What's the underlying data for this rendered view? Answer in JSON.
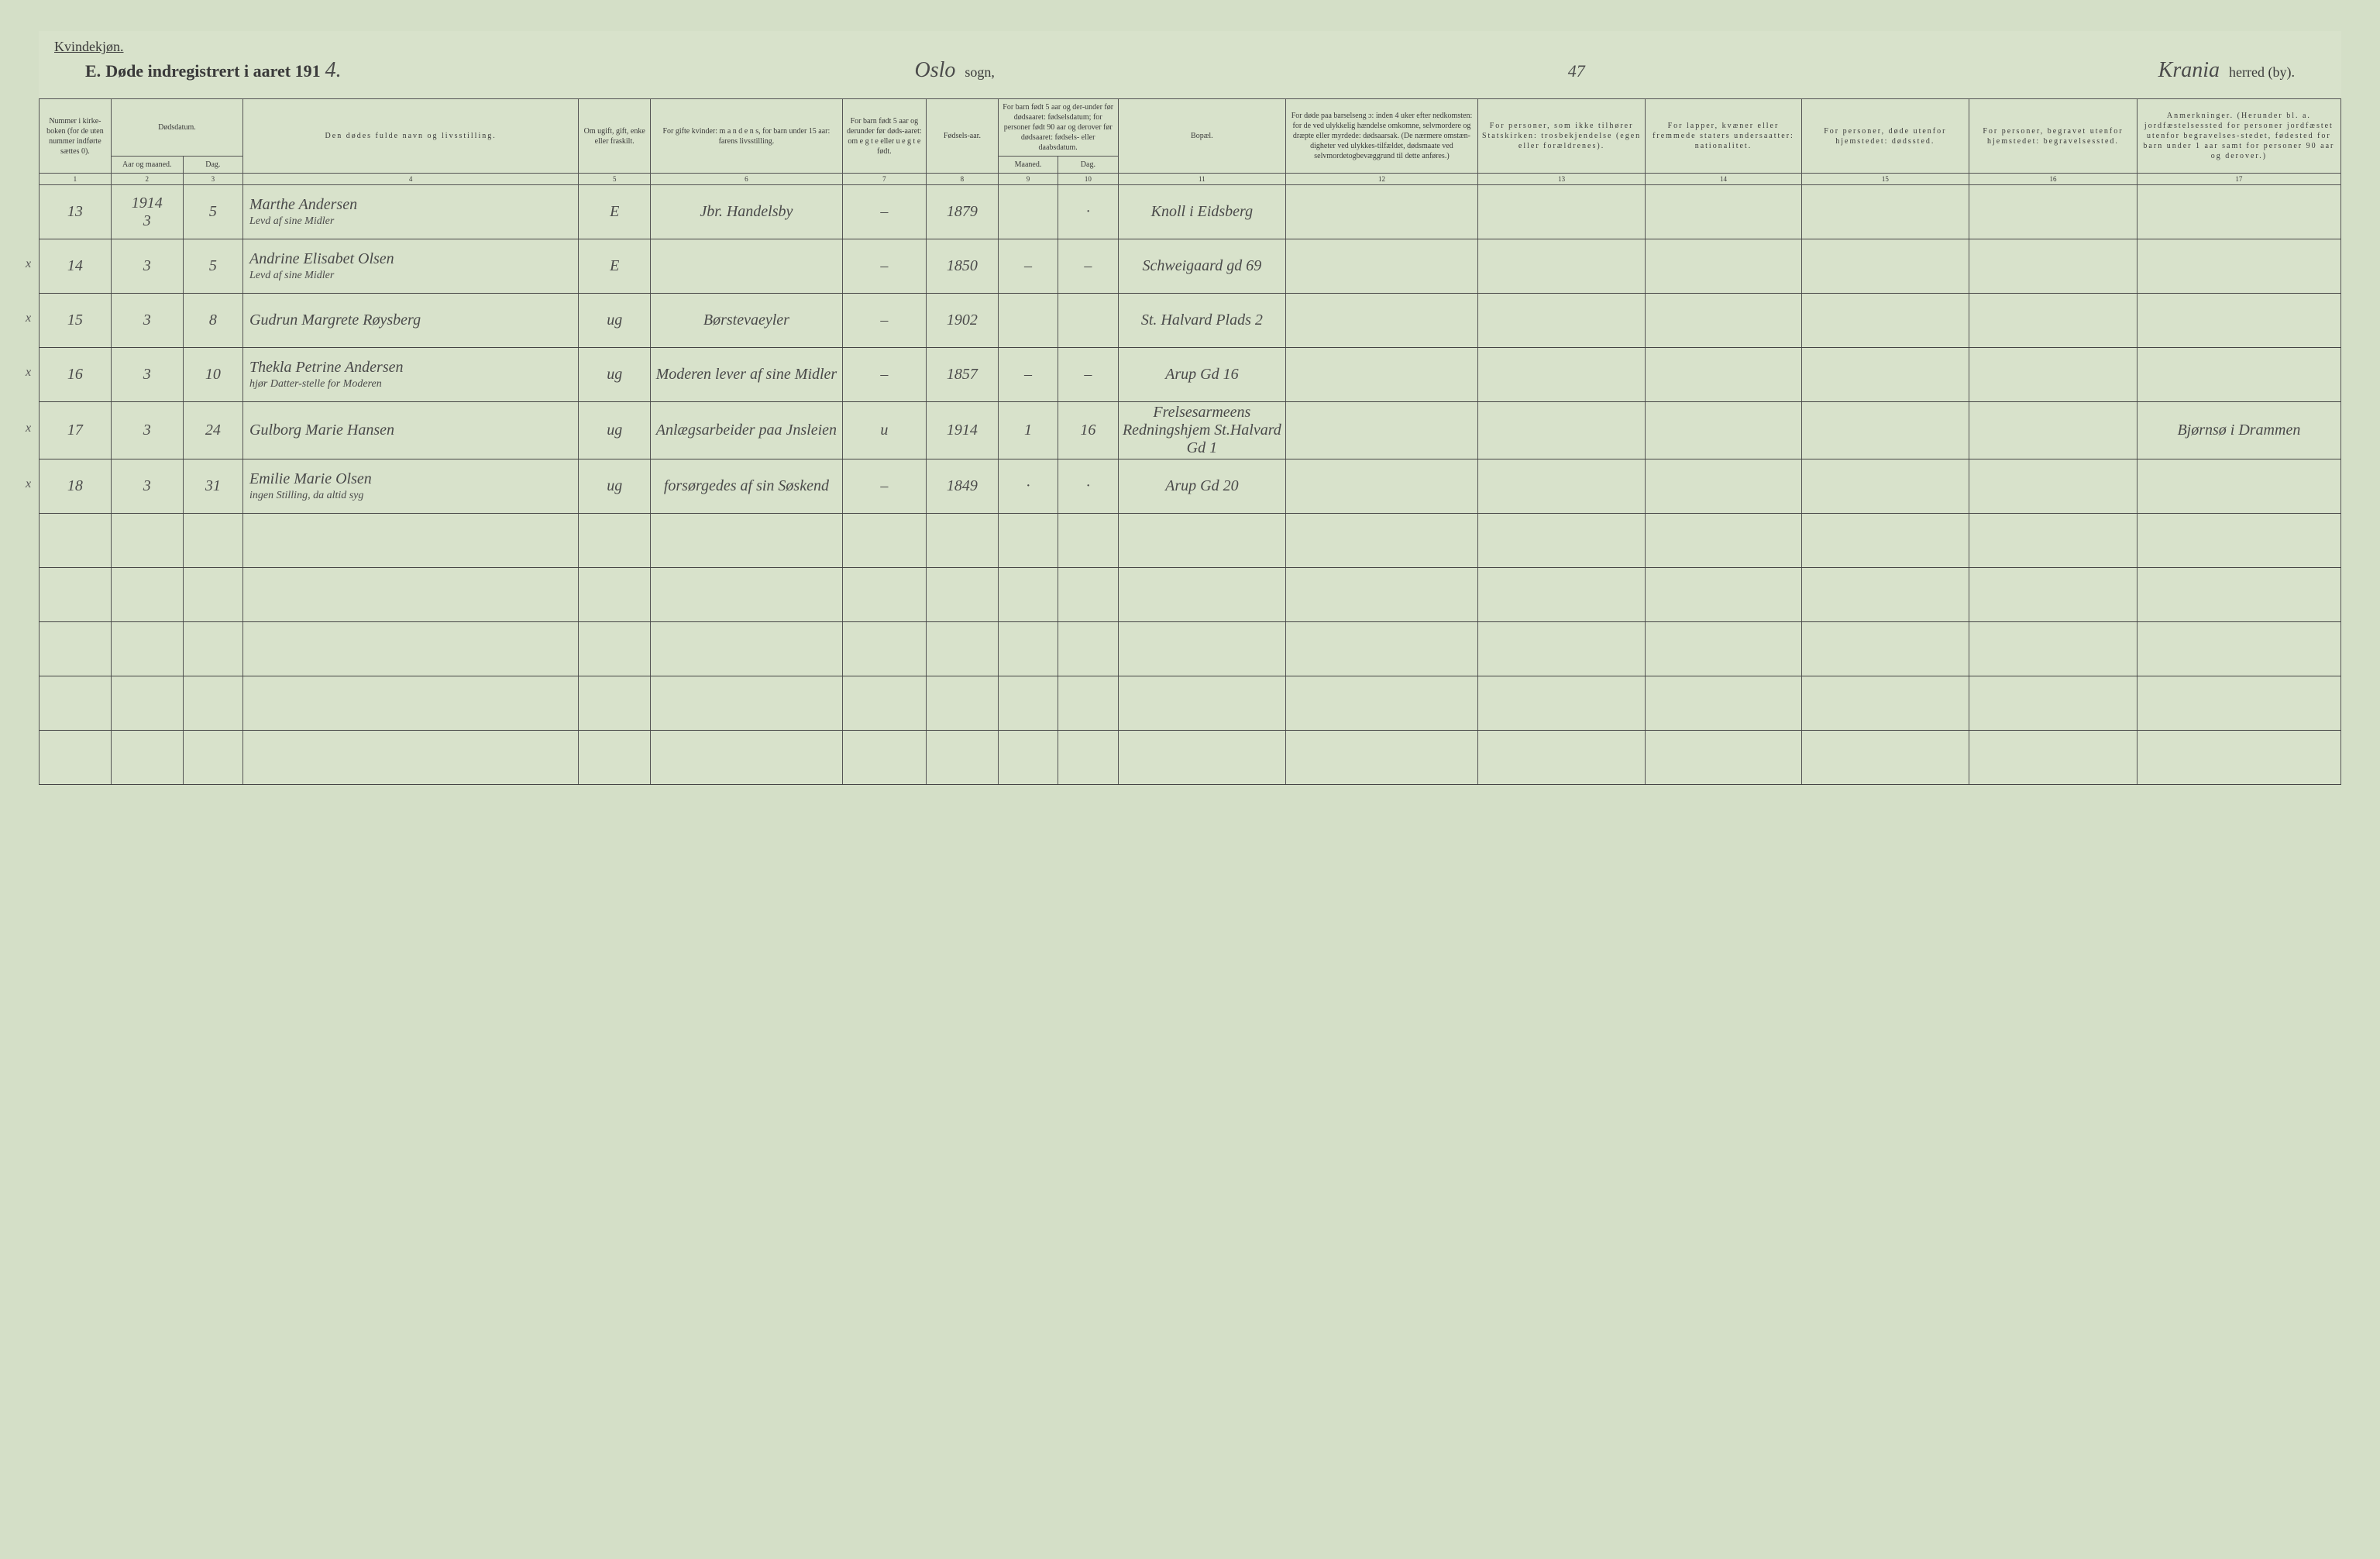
{
  "header": {
    "gender": "Kvindekjøn.",
    "title_prefix": "E.",
    "title_main": "Døde indregistrert i aaret 191",
    "year_digit": "4.",
    "sogn_value": "Oslo",
    "sogn_label": "sogn,",
    "page_num": "47",
    "herred_value": "Krania",
    "herred_label": "herred (by)."
  },
  "columns": {
    "c1": "Nummer i kirke-boken (for de uten nummer indførte sættes 0).",
    "c2_3_top": "Dødsdatum.",
    "c2": "Aar og maaned.",
    "c3": "Dag.",
    "c4": "Den dødes fulde navn og livsstilling.",
    "c5": "Om ugift, gift, enke eller fraskilt.",
    "c6": "For gifte kvinder: m a n d e n s, for barn under 15 aar: farens livsstilling.",
    "c7": "For barn født 5 aar og derunder før døds-aaret: om e g t e eller u e g t e født.",
    "c8": "Fødsels-aar.",
    "c9_10_top": "For barn født 5 aar og der-under før dødsaaret: fødselsdatum; for personer født 90 aar og derover før dødsaaret: fødsels- eller daabsdatum.",
    "c9": "Maaned.",
    "c10": "Dag.",
    "c11": "Bopæl.",
    "c12": "For døde paa barselseng ɔ: inden 4 uker efter nedkomsten: for de ved ulykkelig hændelse omkomne, selvmordere og dræpte eller myrdede: dødsaarsak. (De nærmere omstæn-digheter ved ulykkes-tilfældet, dødsmaate ved selvmordetogbevæggrund til dette anføres.)",
    "c13": "For personer, som ikke tilhører Statskirken: trosbekjendelse (egen eller forældrenes).",
    "c14": "For lapper, kvæner eller fremmede staters undersaatter: nationalitet.",
    "c15": "For personer, døde utenfor hjemstedet: dødssted.",
    "c16": "For personer, begravet utenfor hjemstedet: begravelsessted.",
    "c17": "Anmerkninger. (Herunder bl. a. jordfæstelsessted for personer jordfæstet utenfor begravelses-stedet, fødested for barn under 1 aar samt for personer 90 aar og derover.)"
  },
  "colnums": [
    "1",
    "2",
    "3",
    "4",
    "5",
    "6",
    "7",
    "8",
    "9",
    "10",
    "11",
    "12",
    "13",
    "14",
    "15",
    "16",
    "17"
  ],
  "rows": [
    {
      "x": "",
      "num": "13",
      "year_month": "1914\n3",
      "day": "5",
      "name": "Marthe Andersen",
      "name_sub": "Levd af sine Midler",
      "status": "E",
      "mandens": "Jbr. Handelsby",
      "egte": "–",
      "faar": "1879",
      "fmnd": "",
      "fdag": "·",
      "bopael": "Knoll i Eidsberg",
      "c12": "",
      "c13": "",
      "c14": "",
      "c15": "",
      "c16": "",
      "c17": ""
    },
    {
      "x": "x",
      "num": "14",
      "year_month": "3",
      "day": "5",
      "name": "Andrine Elisabet Olsen",
      "name_sub": "Levd af sine Midler",
      "status": "E",
      "mandens": "",
      "egte": "–",
      "faar": "1850",
      "fmnd": "–",
      "fdag": "–",
      "bopael": "Schweigaard gd 69",
      "c12": "",
      "c13": "",
      "c14": "",
      "c15": "",
      "c16": "",
      "c17": ""
    },
    {
      "x": "x",
      "num": "15",
      "year_month": "3",
      "day": "8",
      "name": "Gudrun Margrete Røysberg",
      "name_sub": "",
      "status": "ug",
      "mandens": "Børstevaeyler",
      "egte": "–",
      "faar": "1902",
      "fmnd": "",
      "fdag": "",
      "bopael": "St. Halvard Plads 2",
      "c12": "",
      "c13": "",
      "c14": "",
      "c15": "",
      "c16": "",
      "c17": ""
    },
    {
      "x": "x",
      "num": "16",
      "year_month": "3",
      "day": "10",
      "name": "Thekla Petrine Andersen",
      "name_sub": "hjør Datter-stelle for Moderen",
      "status": "ug",
      "mandens": "Moderen lever af sine Midler",
      "egte": "–",
      "faar": "1857",
      "fmnd": "–",
      "fdag": "–",
      "bopael": "Arup Gd 16",
      "c12": "",
      "c13": "",
      "c14": "",
      "c15": "",
      "c16": "",
      "c17": ""
    },
    {
      "x": "x",
      "num": "17",
      "year_month": "3",
      "day": "24",
      "name": "Gulborg Marie Hansen",
      "name_sub": "",
      "status": "ug",
      "mandens": "Anlægsarbeider paa Jnsleien",
      "egte": "u",
      "faar": "1914",
      "fmnd": "1",
      "fdag": "16",
      "bopael": "Frelsesarmeens Redningshjem St.Halvard Gd 1",
      "c12": "",
      "c13": "",
      "c14": "",
      "c15": "",
      "c16": "",
      "c17": "Bjørnsø i Drammen"
    },
    {
      "x": "x",
      "num": "18",
      "year_month": "3",
      "day": "31",
      "name": "Emilie Marie Olsen",
      "name_sub": "ingen Stilling, da altid syg",
      "status": "ug",
      "mandens": "forsørgedes af sin Søskend",
      "egte": "–",
      "faar": "1849",
      "fmnd": "·",
      "fdag": "·",
      "bopael": "Arup Gd 20",
      "c12": "",
      "c13": "",
      "c14": "",
      "c15": "",
      "c16": "",
      "c17": ""
    }
  ],
  "empty_rows": 5,
  "colors": {
    "background": "#d4dfc7",
    "page": "#d8e2cb",
    "border": "#555555",
    "heavy_border": "#444444",
    "text": "#3a3a3a",
    "handwriting": "#4a4a4a"
  },
  "typography": {
    "header_font": "Georgia serif",
    "handwriting_font": "Brush Script MT cursive",
    "title_size_pt": 20,
    "header_cell_size_pt": 10,
    "data_cell_size_pt": 20
  }
}
